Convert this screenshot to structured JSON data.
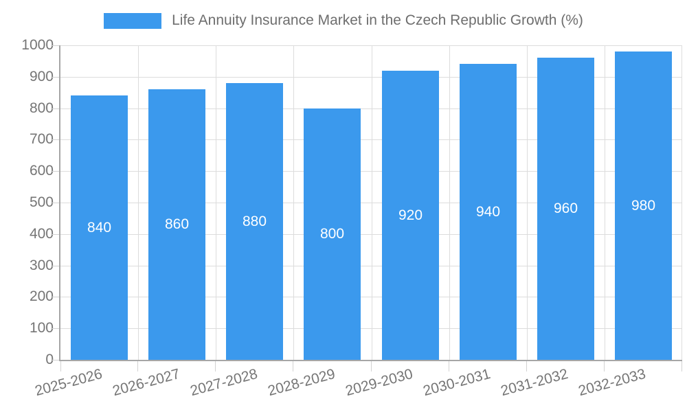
{
  "chart_data": {
    "type": "bar",
    "title": "Life Annuity Insurance Market in the Czech Republic Growth (%)",
    "categories": [
      "2025-2026",
      "2026-2027",
      "2027-2028",
      "2028-2029",
      "2029-2030",
      "2030-2031",
      "2031-2032",
      "2032-2033"
    ],
    "values": [
      840,
      860,
      880,
      800,
      920,
      940,
      960,
      980
    ],
    "xlabel": "",
    "ylabel": "",
    "ylim": [
      0,
      1000
    ],
    "ytick_step": 100,
    "yticks": [
      0,
      100,
      200,
      300,
      400,
      500,
      600,
      700,
      800,
      900,
      1000
    ],
    "grid": true,
    "legend_position": "top",
    "bar_labels_shown": true,
    "colors": {
      "bar": "#3b99ed",
      "bar_value_label": "#ffffff",
      "axis_line": "#a6a6a6",
      "gridline": "#dcdcdc",
      "tick_mark": "#d2d2d2",
      "axis_tick_label": "#757575",
      "legend_text": "#6e6e6e",
      "background": "#ffffff"
    }
  }
}
